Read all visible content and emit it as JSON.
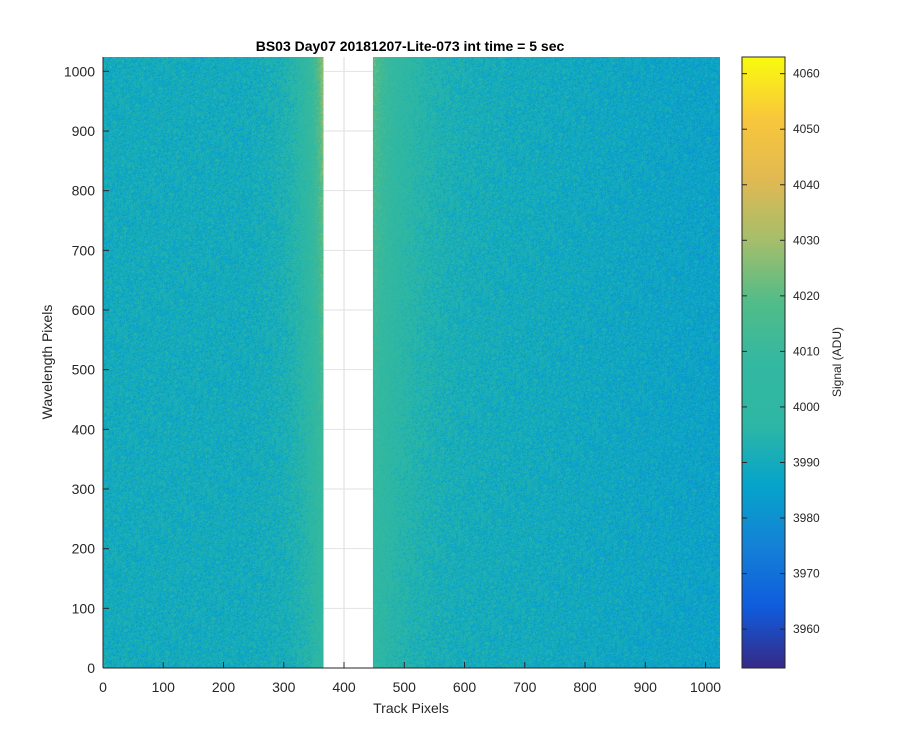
{
  "chart_data": {
    "type": "heatmap",
    "title": "BS03 Day07 20181207-Lite-073 int time = 5 sec",
    "xlabel": "Track Pixels",
    "ylabel": "Wavelength Pixels",
    "xlim": [
      0,
      1024
    ],
    "ylim": [
      0,
      1024
    ],
    "xticks": [
      0,
      100,
      200,
      300,
      400,
      500,
      600,
      700,
      800,
      900,
      1000
    ],
    "yticks": [
      0,
      100,
      200,
      300,
      400,
      500,
      600,
      700,
      800,
      900,
      1000
    ],
    "masked_track_range": [
      366,
      448
    ],
    "grid": false,
    "colormap": "parula",
    "colorbar": {
      "label": "Signal (ADU)",
      "range": [
        3953,
        4063
      ],
      "ticks": [
        3960,
        3970,
        3980,
        3990,
        4000,
        4010,
        4020,
        4030,
        4040,
        4050,
        4060
      ],
      "placement": "right"
    },
    "signal_summary": {
      "background_mean": 3990,
      "peak_near_mask_edges": 4030,
      "right_edge_mean": 3986
    }
  }
}
